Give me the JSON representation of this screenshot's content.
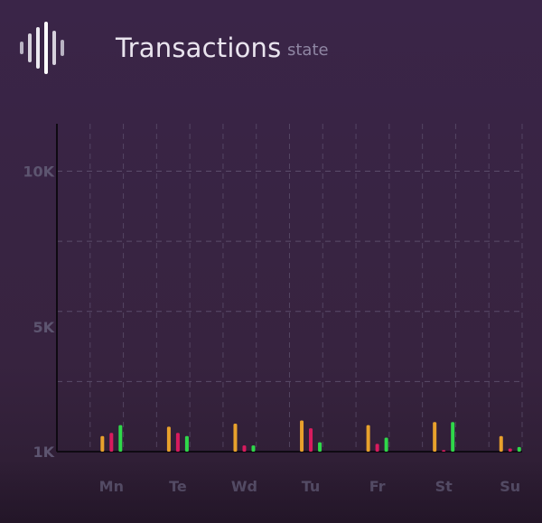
{
  "header": {
    "title": "Transactions",
    "subtitle": "state",
    "logo_icon": "waveform-icon"
  },
  "colors": {
    "background": "#37233f",
    "axis": "#0f0a12",
    "grid": "#6a5f7c",
    "label": "#5d5570",
    "title": "#e9e4ee",
    "subtitle": "#8f86a3"
  },
  "chart_data": {
    "type": "bar",
    "categories": [
      "Mn",
      "Te",
      "Wd",
      "Tu",
      "Fr",
      "St",
      "Su"
    ],
    "series": [
      {
        "color": "#e8a12c",
        "values": [
          1500,
          1800,
          1900,
          2000,
          1850,
          1950,
          1500
        ]
      },
      {
        "color": "#d81b5e",
        "values": [
          1600,
          1600,
          1200,
          1750,
          1250,
          1050,
          1100
        ]
      },
      {
        "color": "#2fd84a",
        "values": [
          1850,
          1500,
          1200,
          1300,
          1450,
          1950,
          1150
        ]
      }
    ],
    "ylim": [
      1000,
      11000
    ],
    "yticks": [
      {
        "value": 1000,
        "label": "1K"
      },
      {
        "value": 5000,
        "label": "5K"
      },
      {
        "value": 10000,
        "label": "10K"
      }
    ],
    "grid": true,
    "xlabel": "",
    "ylabel": ""
  }
}
